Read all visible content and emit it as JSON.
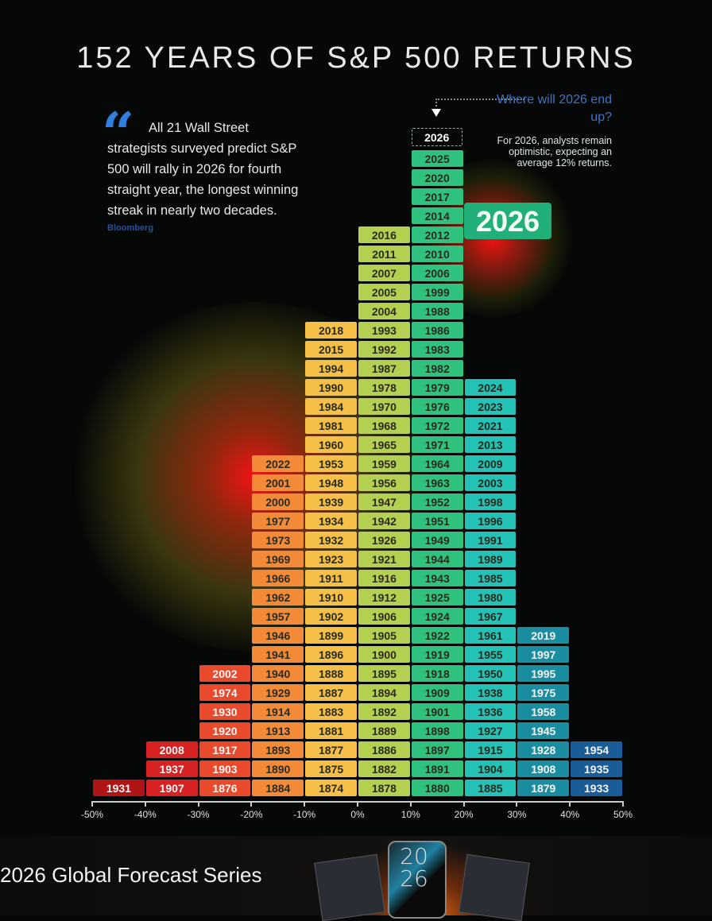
{
  "title": "152 YEARS OF S&P 500 RETURNS",
  "quote": {
    "text": "All 21 Wall Street strategists surveyed predict S&P 500 will rally in 2026 for fourth straight year, the longest winning streak in nearly two decades.",
    "source": "Bloomberg"
  },
  "callout": {
    "question": "Where will 2026 end up?",
    "note": "For 2026, analysts remain optimistic, expecting an average 12% returns.",
    "highlight": "2026"
  },
  "chart_data": {
    "type": "histogram",
    "title": "152 YEARS OF S&P 500 RETURNS",
    "xlabel": "",
    "ylabel": "",
    "tick_labels": [
      "-50%",
      "-40%",
      "-30%",
      "-20%",
      "-10%",
      "0%",
      "10%",
      "20%",
      "30%",
      "40%",
      "50%"
    ],
    "xlim": [
      -50,
      50
    ],
    "bins": [
      {
        "range": [
          -50,
          -40
        ],
        "color": "#b01414",
        "years": [
          "1931"
        ]
      },
      {
        "range": [
          -40,
          -30
        ],
        "color": "#d62222",
        "years": [
          "2008",
          "1937",
          "1907"
        ]
      },
      {
        "range": [
          -30,
          -20
        ],
        "color": "#ea4a2c",
        "years": [
          "2002",
          "1974",
          "1930",
          "1920",
          "1917",
          "1903",
          "1876"
        ]
      },
      {
        "range": [
          -20,
          -10
        ],
        "color": "#f38a38",
        "years": [
          "2022",
          "2001",
          "2000",
          "1977",
          "1973",
          "1969",
          "1966",
          "1962",
          "1957",
          "1946",
          "1941",
          "1940",
          "1929",
          "1914",
          "1913",
          "1893",
          "1890",
          "1884"
        ]
      },
      {
        "range": [
          -10,
          0
        ],
        "color": "#f6c048",
        "years": [
          "2018",
          "2015",
          "1994",
          "1990",
          "1984",
          "1981",
          "1960",
          "1953",
          "1948",
          "1939",
          "1934",
          "1932",
          "1923",
          "1911",
          "1910",
          "1902",
          "1899",
          "1896",
          "1888",
          "1887",
          "1883",
          "1881",
          "1877",
          "1875",
          "1874"
        ]
      },
      {
        "range": [
          0,
          10
        ],
        "color": "#b4d050",
        "years": [
          "2016",
          "2011",
          "2007",
          "2005",
          "2004",
          "1993",
          "1992",
          "1987",
          "1978",
          "1970",
          "1968",
          "1965",
          "1959",
          "1956",
          "1947",
          "1942",
          "1926",
          "1921",
          "1916",
          "1912",
          "1906",
          "1905",
          "1900",
          "1895",
          "1894",
          "1892",
          "1889",
          "1886",
          "1882",
          "1878"
        ]
      },
      {
        "range": [
          10,
          20
        ],
        "color": "#2ec27e",
        "pending": "2026",
        "years": [
          "2025",
          "2020",
          "2017",
          "2014",
          "2012",
          "2010",
          "2006",
          "1999",
          "1988",
          "1986",
          "1983",
          "1982",
          "1979",
          "1976",
          "1972",
          "1971",
          "1964",
          "1963",
          "1952",
          "1951",
          "1949",
          "1944",
          "1943",
          "1925",
          "1924",
          "1922",
          "1919",
          "1918",
          "1909",
          "1901",
          "1898",
          "1897",
          "1891",
          "1880"
        ]
      },
      {
        "range": [
          20,
          30
        ],
        "color": "#24c2b6",
        "years": [
          "2024",
          "2023",
          "2021",
          "2013",
          "2009",
          "2003",
          "1998",
          "1996",
          "1991",
          "1989",
          "1985",
          "1980",
          "1967",
          "1961",
          "1955",
          "1950",
          "1938",
          "1936",
          "1927",
          "1915",
          "1904",
          "1885"
        ]
      },
      {
        "range": [
          30,
          40
        ],
        "color": "#1a8ea0",
        "years": [
          "2019",
          "1997",
          "1995",
          "1975",
          "1958",
          "1945",
          "1928",
          "1908",
          "1879"
        ]
      },
      {
        "range": [
          40,
          50
        ],
        "color": "#1a5c98",
        "years": [
          "1954",
          "1935",
          "1933"
        ]
      }
    ],
    "dark_text_bins": [
      3,
      4,
      5,
      6,
      7
    ]
  },
  "banner": {
    "title": "2026 Global Forecast Series",
    "device_text": "20 26"
  }
}
